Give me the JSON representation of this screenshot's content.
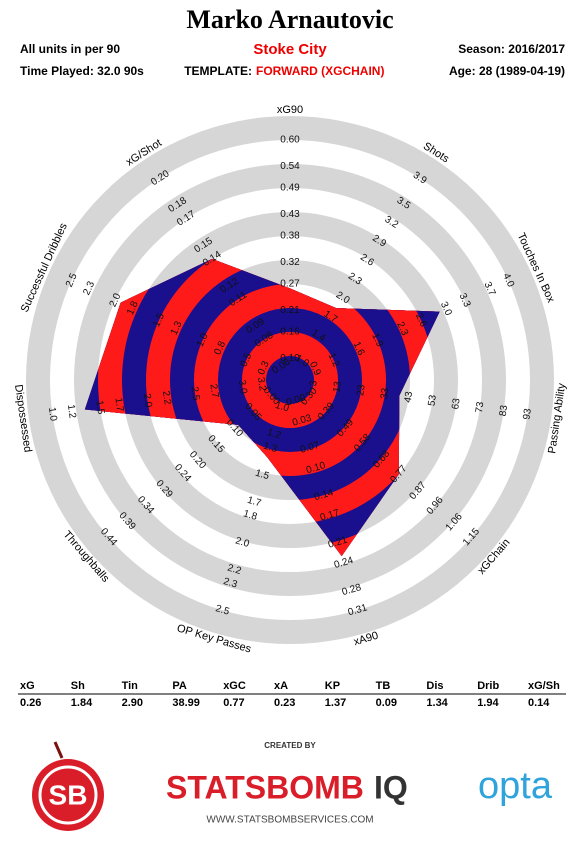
{
  "header": {
    "title": "Marko Arnautovic",
    "units": "All units in per 90",
    "club": "Stoke City",
    "season": "Season: 2016/2017",
    "time_played": "Time Played: 32.0 90s",
    "template_label": "TEMPLATE:",
    "template": "FORWARD (XGCHAIN)",
    "age": "Age: 28 (1989-04-19)"
  },
  "chart_data": {
    "type": "radar",
    "inner_colors": [
      "#1a0f8c",
      "#ff1a1a"
    ],
    "outer_colors": [
      "#d6d6d6",
      "#ffffff"
    ],
    "values": [
      0.26,
      1.84,
      2.9,
      38.99,
      0.77,
      0.23,
      1.37,
      0.09,
      1.34,
      1.94,
      0.14
    ],
    "axes": [
      {
        "name": "xG90",
        "lim": [
          0.05,
          0.6
        ],
        "ticks": [
          {
            "value": 0.1,
            "label": "0.10"
          },
          0.16,
          0.21,
          0.27,
          0.32,
          0.38,
          0.43,
          0.49,
          0.54,
          {
            "value": 0.6,
            "label": "0.60"
          }
        ]
      },
      {
        "name": "Shots",
        "lim": [
          0.7,
          3.9
        ],
        "ticks": [
          {
            "value": 1,
            "label": "1.0"
          },
          1.4,
          1.7,
          {
            "value": 2,
            "label": "2.0"
          },
          2.3,
          2.6,
          2.9,
          3.2,
          3.5,
          3.9
        ]
      },
      {
        "name": "Touches In Box",
        "lim": [
          0.5,
          4.0
        ],
        "ticks": [
          0.9,
          1.2,
          1.6,
          1.9,
          2.3,
          2.6,
          {
            "value": 3,
            "label": "3.0"
          },
          3.3,
          3.7,
          {
            "value": 4,
            "label": "4.0"
          }
        ]
      },
      {
        "name": "Passing Ability",
        "lim": [
          -7,
          93
        ],
        "ticks": [
          3,
          13,
          23,
          33,
          43,
          53,
          63,
          73,
          83,
          93
        ]
      },
      {
        "name": "xGChain",
        "lim": [
          0.2,
          1.15
        ],
        "ticks": [
          {
            "value": 0.3,
            "label": "0.30"
          },
          0.39,
          0.49,
          0.58,
          0.68,
          0.77,
          0.87,
          0.96,
          1.06,
          1.15
        ]
      },
      {
        "name": "xA90",
        "lim": [
          -0.03,
          0.31
        ],
        "ticks": [
          {
            "value": 0,
            "label": "0.00"
          },
          0.03,
          0.07,
          {
            "value": 0.1,
            "label": "0.10"
          },
          0.14,
          0.17,
          0.21,
          0.24,
          0.28,
          0.31
        ]
      },
      {
        "name": "OP Key Passes",
        "lim": [
          0.8,
          2.5
        ],
        "ticks": [
          {
            "value": 1,
            "label": "1.0"
          },
          1.2,
          1.3,
          1.5,
          1.7,
          1.8,
          {
            "value": 2,
            "label": "2.0"
          },
          2.2,
          2.3,
          2.5
        ]
      },
      {
        "name": "Throughballs",
        "lim": [
          -0.05,
          0.44
        ],
        "ticks": [
          {
            "value": 0,
            "label": "0.00"
          },
          0.05,
          {
            "value": 0.1,
            "label": "0.10"
          },
          0.15,
          {
            "value": 0.2,
            "label": "0.20"
          },
          0.24,
          0.29,
          0.34,
          0.39,
          0.44
        ]
      },
      {
        "name": "Dispossessed",
        "lim": [
          3.5,
          1.0
        ],
        "ticks": [
          3.2,
          {
            "value": 3,
            "label": "3.0"
          },
          2.7,
          2.5,
          2.2,
          {
            "value": 2,
            "label": "2.0"
          },
          1.7,
          1.5,
          1.2,
          {
            "value": 1,
            "label": "1.0"
          }
        ]
      },
      {
        "name": "Successful Dribbles",
        "lim": [
          0,
          2.5
        ],
        "ticks": [
          0.3,
          0.5,
          0.8,
          {
            "value": 1,
            "label": "1.0"
          },
          1.3,
          1.5,
          1.8,
          {
            "value": 2,
            "label": "2.0"
          },
          2.3,
          2.5
        ]
      },
      {
        "name": "xG/Shot",
        "lim": [
          0.05,
          0.2
        ],
        "ticks": [
          0.06,
          0.08,
          0.09,
          0.11,
          0.12,
          0.14,
          0.15,
          0.17,
          0.18,
          {
            "value": 0.2,
            "label": "0.20"
          }
        ]
      }
    ]
  },
  "table": {
    "headers": [
      "xG",
      "Sh",
      "Tin",
      "PA",
      "xGC",
      "xA",
      "KP",
      "TB",
      "Dis",
      "Drib",
      "xG/Sh"
    ],
    "values": [
      "0.26",
      "1.84",
      "2.90",
      "38.99",
      "0.77",
      "0.23",
      "1.37",
      "0.09",
      "1.34",
      "1.94",
      "0.14"
    ]
  },
  "footer": {
    "created_by": "CREATED BY",
    "sb": "SB",
    "brand": "STATSBOMB",
    "brand_suffix": "IQ",
    "opta": "opta",
    "url": "WWW.STATSBOMBSERVICES.COM"
  }
}
